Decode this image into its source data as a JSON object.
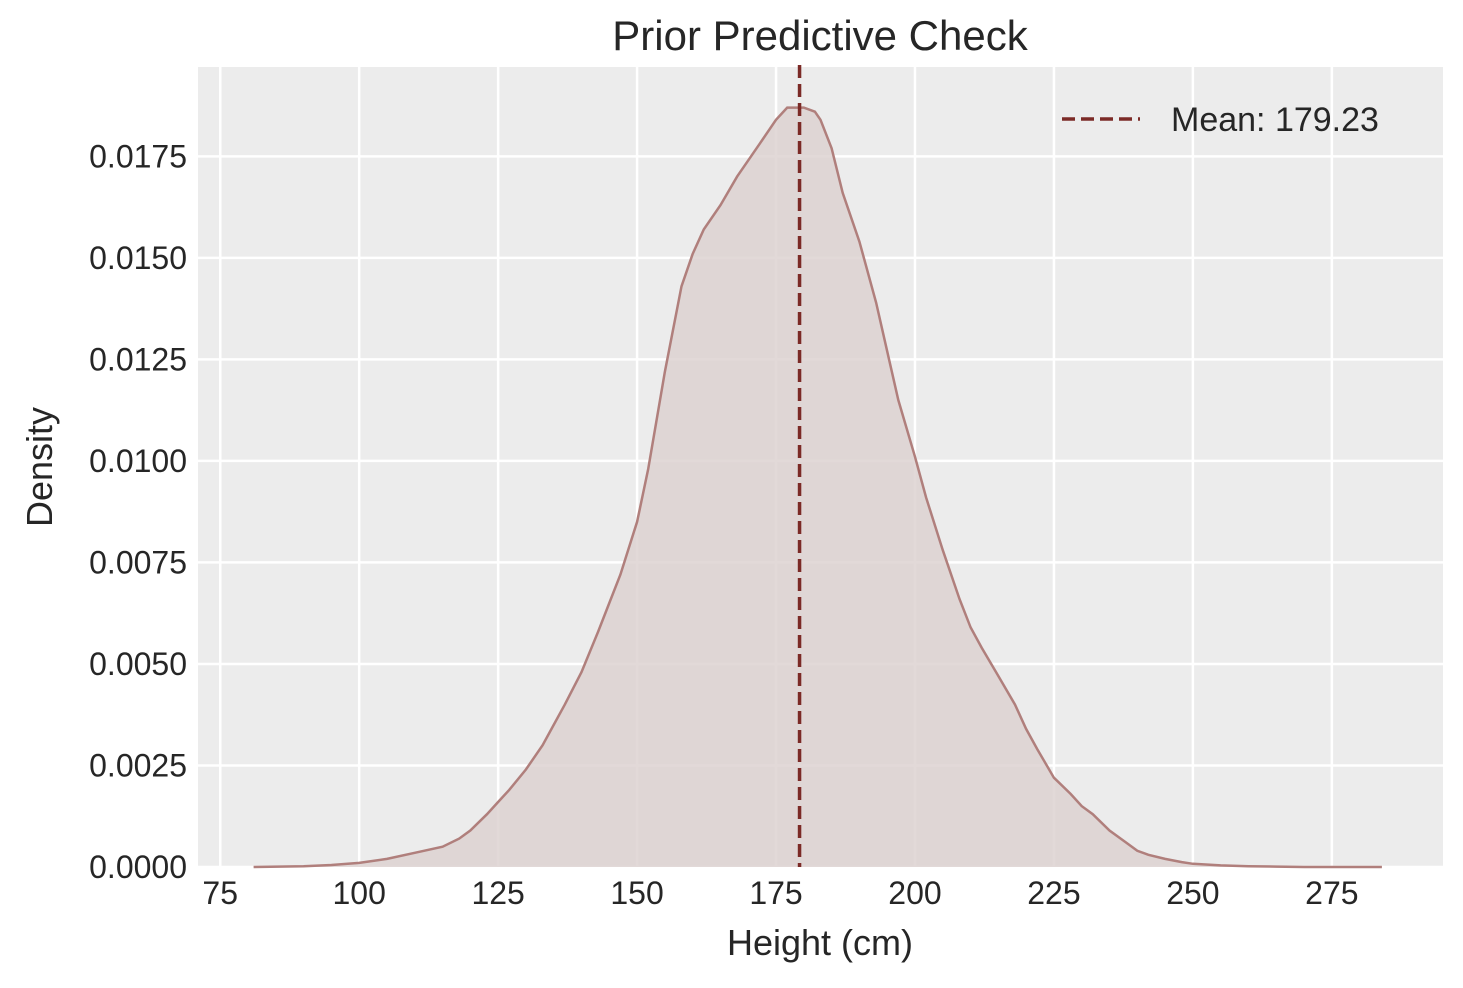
{
  "chart_data": {
    "type": "area",
    "title": "Prior Predictive Check",
    "xlabel": "Height (cm)",
    "ylabel": "Density",
    "xlim": [
      71,
      295
    ],
    "ylim": [
      0,
      0.0197
    ],
    "x_ticks": [
      "75",
      "100",
      "125",
      "150",
      "175",
      "200",
      "225",
      "250",
      "275"
    ],
    "y_ticks": [
      "0.0000",
      "0.0025",
      "0.0050",
      "0.0075",
      "0.0100",
      "0.0125",
      "0.0150",
      "0.0175"
    ],
    "grid": true,
    "legend_position": "top-right",
    "series": [
      {
        "kind": "kde",
        "color": "#b07f7c",
        "fill": "#ddd2d1",
        "x": [
          81,
          90,
          95,
          100,
          105,
          110,
          115,
          118,
          120,
          123,
          125,
          127,
          130,
          133,
          135,
          137,
          140,
          143,
          145,
          147,
          150,
          152,
          155,
          158,
          160,
          162,
          165,
          168,
          170,
          172,
          175,
          177,
          178,
          179,
          180,
          182,
          183,
          185,
          187,
          190,
          193,
          195,
          197,
          200,
          202,
          205,
          208,
          210,
          212,
          215,
          218,
          220,
          222,
          225,
          228,
          230,
          232,
          235,
          238,
          240,
          242,
          245,
          248,
          250,
          255,
          260,
          265,
          270,
          275,
          284
        ],
        "y": [
          0.0,
          2e-05,
          5e-05,
          0.0001,
          0.0002,
          0.00035,
          0.0005,
          0.0007,
          0.0009,
          0.0013,
          0.0016,
          0.0019,
          0.0024,
          0.003,
          0.0035,
          0.004,
          0.0048,
          0.0058,
          0.0065,
          0.0072,
          0.0085,
          0.0098,
          0.0122,
          0.0143,
          0.0151,
          0.0157,
          0.0163,
          0.017,
          0.0174,
          0.0178,
          0.0184,
          0.0187,
          0.0187,
          0.0187,
          0.0187,
          0.0186,
          0.0184,
          0.0177,
          0.0166,
          0.0154,
          0.0139,
          0.0127,
          0.0115,
          0.0101,
          0.0091,
          0.0078,
          0.0066,
          0.0059,
          0.0054,
          0.0047,
          0.004,
          0.0034,
          0.0029,
          0.0022,
          0.0018,
          0.0015,
          0.0013,
          0.0009,
          0.0006,
          0.0004,
          0.0003,
          0.0002,
          0.00012,
          8e-05,
          4e-05,
          2e-05,
          1e-05,
          0.0,
          0.0,
          0.0
        ]
      }
    ],
    "mean_line": {
      "x": 179.23,
      "label": "Mean: 179.23",
      "color": "#7b2a26",
      "style": "dashed"
    }
  }
}
